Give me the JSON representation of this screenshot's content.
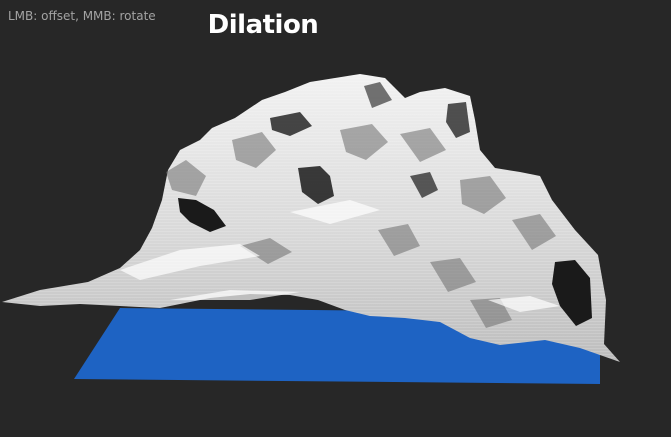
{
  "window": {
    "hint": "LMB: offset, MMB: rotate",
    "title": "Dilation"
  },
  "scene": {
    "terrain_color": "#e6e6e6",
    "water_color": "#1e63c3",
    "background_color": "#272727"
  }
}
